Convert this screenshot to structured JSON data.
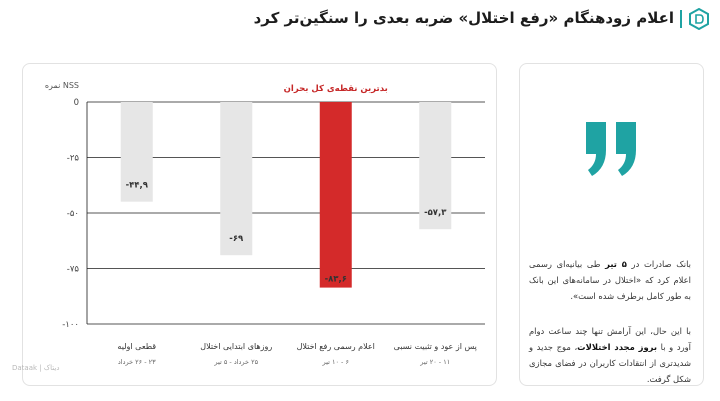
{
  "header": {
    "title": "اعلام زودهنگام «رفع اختلال» ضربه بعدی را سنگین‌تر کرد",
    "brand_color": "#1fa3a3"
  },
  "chart_data": {
    "type": "bar",
    "ylabel": "نمره NSS",
    "ylim": [
      -100,
      0
    ],
    "yticks": [
      0,
      -25,
      -50,
      -75,
      -100
    ],
    "ytick_labels": [
      "0",
      "-۲۵",
      "-۵۰",
      "-۷۵",
      "-۱۰۰"
    ],
    "grid": true,
    "annotation": "بدترین نقطه‌ی کل بحران",
    "categories": [
      {
        "name": "قطعی اولیه",
        "dates": "۲۳ - ۲۶ خرداد",
        "value": -44.9,
        "value_label": "-۴۴,۹",
        "color": "#e6e6e6"
      },
      {
        "name": "روزهای ابتدایی اختلال",
        "dates": "۲۵ خرداد - ۵ تیر",
        "value": -69,
        "value_label": "-۶۹",
        "color": "#e6e6e6"
      },
      {
        "name": "اعلام رسمی رفع اختلال",
        "dates": "۶ - ۱۰ تیر",
        "value": -83.6,
        "value_label": "-۸۳,۶",
        "color": "#d42a2a"
      },
      {
        "name": "پس از عود و تثبیت نسبی",
        "dates": "۱۱ - ۲۰ تیر",
        "value": -57.3,
        "value_label": "-۵۷,۳",
        "color": "#e6e6e6"
      }
    ],
    "annotation_color": "#c62828"
  },
  "side": {
    "quote_color": "#1fa3a3",
    "p1_a": "بانک صادرات در ",
    "p1_bold": "۵ تیر",
    "p1_b": " طی بیانیه‌ای رسمی اعلام کرد که «اختلال در سامانه‌های این بانک به طور کامل برطرف شده است».",
    "p2_a": "با این حال، این آرامش تنها چند ساعت دوام آورد و با ",
    "p2_bold": "بروز مجدد اختلالات",
    "p2_b": "، موج جدید و شدیدتری از انتقادات کاربران در فضای مجازی شکل گرفت."
  },
  "source": "Dataak | دیتاک"
}
